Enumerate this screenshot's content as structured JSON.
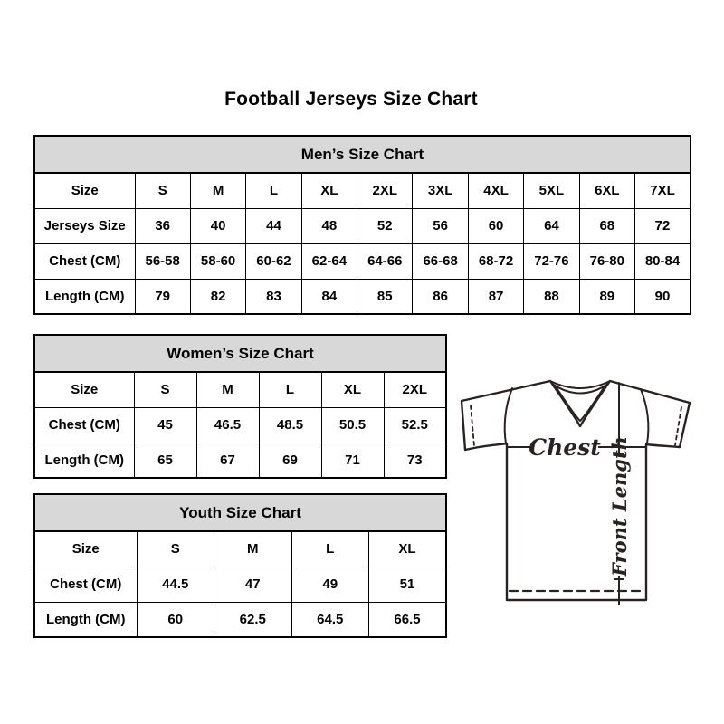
{
  "page": {
    "title": "Football Jerseys Size Chart"
  },
  "tables": [
    {
      "id": "mens",
      "title": "Men’s Size Chart",
      "rows": [
        [
          "Size",
          "S",
          "M",
          "L",
          "XL",
          "2XL",
          "3XL",
          "4XL",
          "5XL",
          "6XL",
          "7XL"
        ],
        [
          "Jerseys Size",
          "36",
          "40",
          "44",
          "48",
          "52",
          "56",
          "60",
          "64",
          "68",
          "72"
        ],
        [
          "Chest (CM)",
          "56-58",
          "58-60",
          "60-62",
          "62-64",
          "64-66",
          "66-68",
          "68-72",
          "72-76",
          "76-80",
          "80-84"
        ],
        [
          "Length (CM)",
          "79",
          "82",
          "83",
          "84",
          "85",
          "86",
          "87",
          "88",
          "89",
          "90"
        ]
      ]
    },
    {
      "id": "womens",
      "title": "Women’s Size Chart",
      "rows": [
        [
          "Size",
          "S",
          "M",
          "L",
          "XL",
          "2XL"
        ],
        [
          "Chest (CM)",
          "45",
          "46.5",
          "48.5",
          "50.5",
          "52.5"
        ],
        [
          "Length (CM)",
          "65",
          "67",
          "69",
          "71",
          "73"
        ]
      ]
    },
    {
      "id": "youth",
      "title": "Youth Size Chart",
      "rows": [
        [
          "Size",
          "S",
          "M",
          "L",
          "XL"
        ],
        [
          "Chest (CM)",
          "44.5",
          "47",
          "49",
          "51"
        ],
        [
          "Length (CM)",
          "60",
          "62.5",
          "64.5",
          "66.5"
        ]
      ]
    }
  ],
  "diagram": {
    "chest_label": "Chest",
    "front_length_label": "Front Length"
  },
  "colors": {
    "table_header_bg": "#d8d8d8",
    "table_border": "#000000",
    "diagram_stroke": "#2a2220",
    "text": "#000000",
    "background": "#ffffff"
  }
}
